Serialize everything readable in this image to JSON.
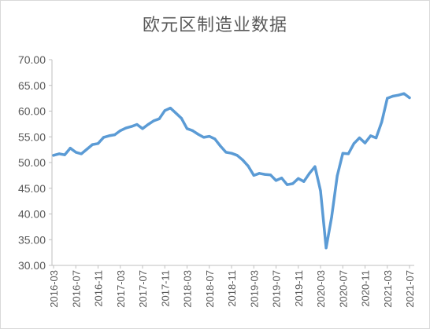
{
  "chart_data": {
    "type": "line",
    "title": "欧元区制造业数据",
    "xlabel": "",
    "ylabel": "",
    "ylim": [
      30,
      70
    ],
    "yticks": [
      "30.00",
      "35.00",
      "40.00",
      "45.00",
      "50.00",
      "55.00",
      "60.00",
      "65.00",
      "70.00"
    ],
    "xticks": [
      "2016-03",
      "2016-07",
      "2016-11",
      "2017-03",
      "2017-07",
      "2017-11",
      "2018-03",
      "2018-07",
      "2018-11",
      "2019-03",
      "2019-07",
      "2019-11",
      "2020-03",
      "2020-07",
      "2020-11",
      "2021-03",
      "2021-07"
    ],
    "grid": false,
    "legend": "none",
    "color": "#5b9bd5",
    "x": [
      "2016-03",
      "2016-04",
      "2016-05",
      "2016-06",
      "2016-07",
      "2016-08",
      "2016-09",
      "2016-10",
      "2016-11",
      "2016-12",
      "2017-01",
      "2017-02",
      "2017-03",
      "2017-04",
      "2017-05",
      "2017-06",
      "2017-07",
      "2017-08",
      "2017-09",
      "2017-10",
      "2017-11",
      "2017-12",
      "2018-01",
      "2018-02",
      "2018-03",
      "2018-04",
      "2018-05",
      "2018-06",
      "2018-07",
      "2018-08",
      "2018-09",
      "2018-10",
      "2018-11",
      "2018-12",
      "2019-01",
      "2019-02",
      "2019-03",
      "2019-04",
      "2019-05",
      "2019-06",
      "2019-07",
      "2019-08",
      "2019-09",
      "2019-10",
      "2019-11",
      "2019-12",
      "2020-01",
      "2020-02",
      "2020-03",
      "2020-04",
      "2020-05",
      "2020-06",
      "2020-07",
      "2020-08",
      "2020-09",
      "2020-10",
      "2020-11",
      "2020-12",
      "2021-01",
      "2021-02",
      "2021-03",
      "2021-04",
      "2021-05",
      "2021-06",
      "2021-07"
    ],
    "series": [
      {
        "values": [
          51.4,
          51.7,
          51.5,
          52.8,
          52.0,
          51.7,
          52.6,
          53.5,
          53.7,
          54.9,
          55.2,
          55.4,
          56.2,
          56.7,
          57.0,
          57.4,
          56.6,
          57.4,
          58.1,
          58.5,
          60.1,
          60.6,
          59.6,
          58.6,
          56.6,
          56.2,
          55.5,
          54.9,
          55.1,
          54.6,
          53.2,
          52.0,
          51.8,
          51.4,
          50.5,
          49.3,
          47.5,
          47.9,
          47.7,
          47.6,
          46.5,
          47.0,
          45.7,
          45.9,
          46.9,
          46.3,
          47.9,
          49.2,
          44.5,
          33.4,
          39.4,
          47.4,
          51.8,
          51.7,
          53.7,
          54.8,
          53.8,
          55.2,
          54.8,
          57.9,
          62.5,
          62.9,
          63.1,
          63.4,
          62.6
        ]
      }
    ]
  }
}
